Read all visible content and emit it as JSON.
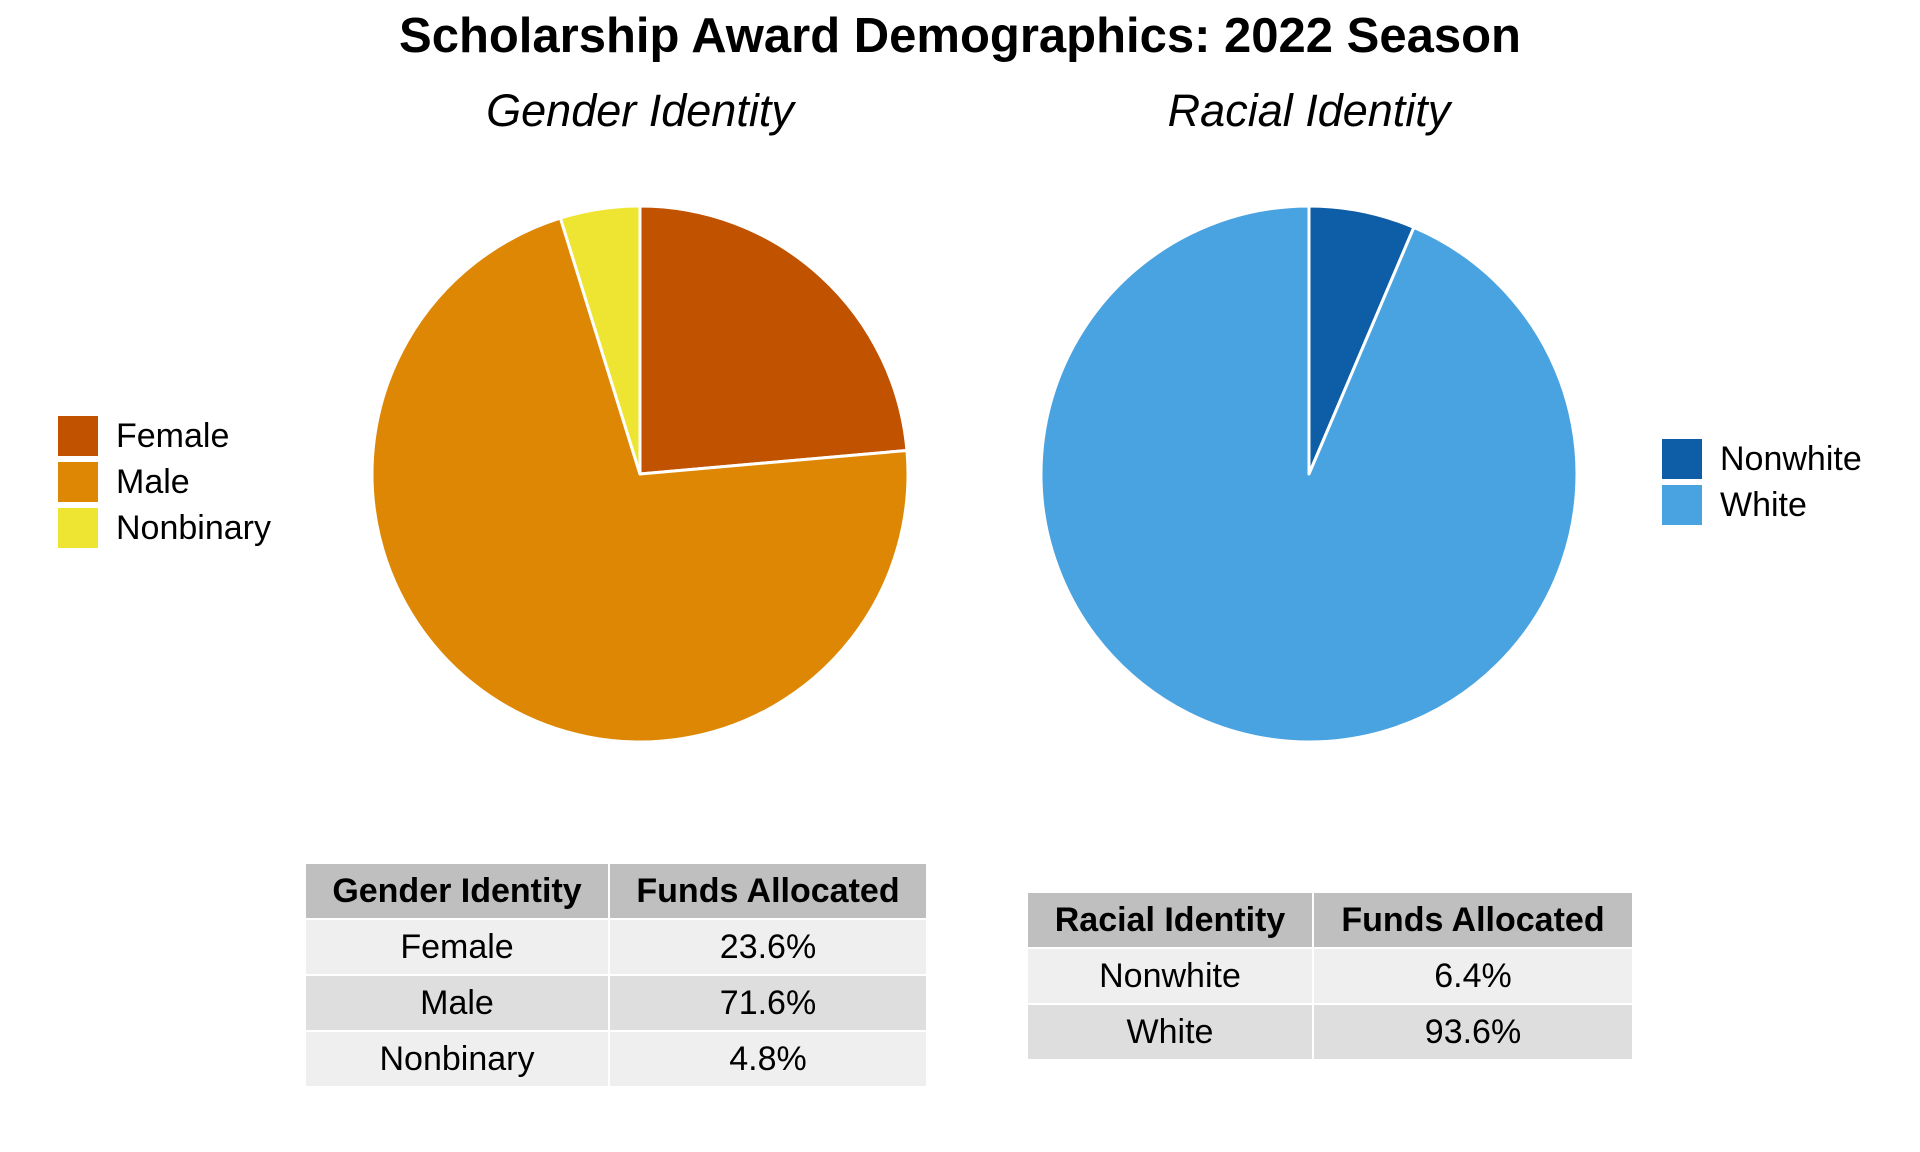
{
  "title": "Scholarship Award Demographics: 2022 Season",
  "chart_data": [
    {
      "type": "pie",
      "title": "Gender Identity",
      "categories": [
        "Female",
        "Male",
        "Nonbinary"
      ],
      "values": [
        23.6,
        71.6,
        4.8
      ],
      "colors": [
        "#c05200",
        "#de8705",
        "#eee532"
      ],
      "legend_position": "left"
    },
    {
      "type": "pie",
      "title": "Racial Identity",
      "categories": [
        "Nonwhite",
        "White"
      ],
      "values": [
        6.4,
        93.6
      ],
      "colors": [
        "#0d5ea6",
        "#4aa3e1"
      ],
      "legend_position": "right"
    }
  ],
  "tables": [
    {
      "headers": [
        "Gender Identity",
        "Funds Allocated"
      ],
      "rows": [
        [
          "Female",
          "23.6%"
        ],
        [
          "Male",
          "71.6%"
        ],
        [
          "Nonbinary",
          "4.8%"
        ]
      ]
    },
    {
      "headers": [
        "Racial Identity",
        "Funds Allocated"
      ],
      "rows": [
        [
          "Nonwhite",
          "6.4%"
        ],
        [
          "White",
          "93.6%"
        ]
      ]
    }
  ]
}
